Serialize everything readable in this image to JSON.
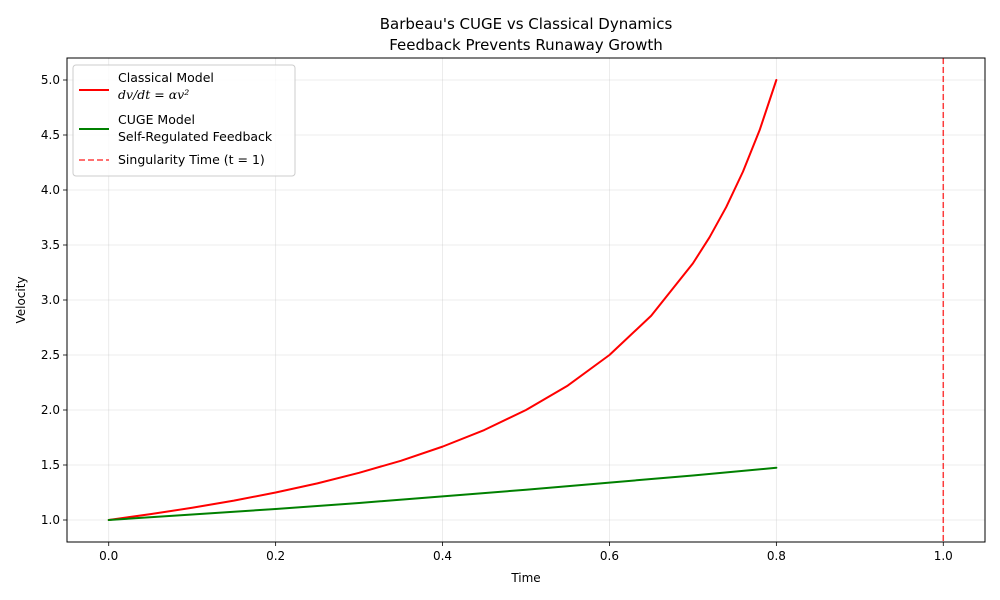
{
  "chart_data": {
    "type": "line",
    "title": "Barbeau's CUGE vs Classical Dynamics",
    "subtitle": "Feedback Prevents Runaway Growth",
    "xlabel": "Time",
    "ylabel": "Velocity",
    "xlim": [
      -0.05,
      1.05
    ],
    "ylim": [
      0.8,
      5.2
    ],
    "xticks": [
      0.0,
      0.2,
      0.4,
      0.6,
      0.8,
      1.0
    ],
    "xtick_labels": [
      "0.0",
      "0.2",
      "0.4",
      "0.6",
      "0.8",
      "1.0"
    ],
    "yticks": [
      1.0,
      1.5,
      2.0,
      2.5,
      3.0,
      3.5,
      4.0,
      4.5,
      5.0
    ],
    "ytick_labels": [
      "1.0",
      "1.5",
      "2.0",
      "2.5",
      "3.0",
      "3.5",
      "4.0",
      "4.5",
      "5.0"
    ],
    "grid": true,
    "legend_position": "top-left",
    "series": [
      {
        "name": "Classical Model",
        "name_line2": "dv/dt = αv²",
        "color": "#ff0000",
        "style": "solid",
        "x": [
          0.0,
          0.05,
          0.1,
          0.15,
          0.2,
          0.25,
          0.3,
          0.35,
          0.4,
          0.45,
          0.5,
          0.55,
          0.6,
          0.65,
          0.7,
          0.72,
          0.74,
          0.76,
          0.78,
          0.8
        ],
        "y": [
          1.0,
          1.053,
          1.111,
          1.176,
          1.25,
          1.333,
          1.429,
          1.538,
          1.667,
          1.818,
          2.0,
          2.222,
          2.5,
          2.857,
          3.333,
          3.571,
          3.846,
          4.167,
          4.545,
          5.0
        ]
      },
      {
        "name": "CUGE Model",
        "name_line2": "Self-Regulated Feedback",
        "color": "#008000",
        "style": "solid",
        "x": [
          0.0,
          0.1,
          0.2,
          0.3,
          0.4,
          0.5,
          0.6,
          0.7,
          0.8
        ],
        "y": [
          1.0,
          1.05,
          1.1,
          1.155,
          1.215,
          1.275,
          1.34,
          1.405,
          1.475
        ]
      }
    ],
    "vline": {
      "x": 1.0,
      "label": "Singularity Time (t = 1)",
      "color": "#ff0000",
      "style": "dashed"
    }
  }
}
